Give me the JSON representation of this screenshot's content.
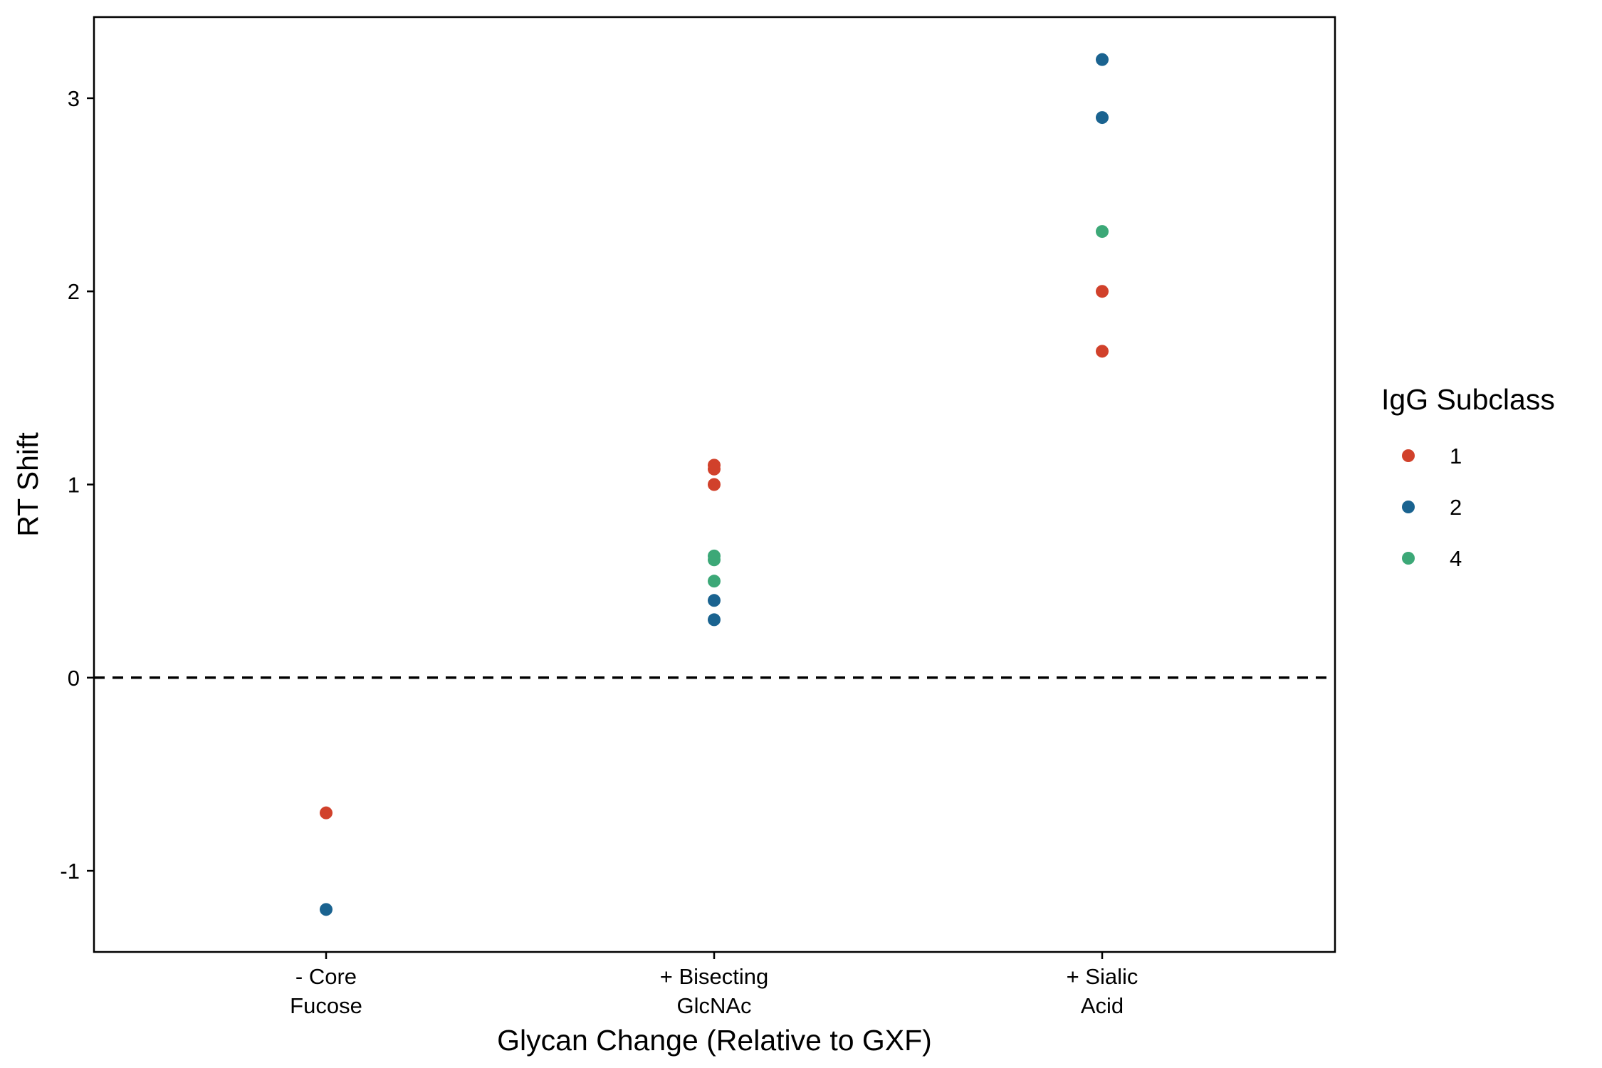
{
  "chart_data": {
    "type": "scatter",
    "title": "",
    "xlabel": "Glycan Change (Relative to GXF)",
    "ylabel": "RT Shift",
    "categories": [
      [
        "- Core",
        "Fucose"
      ],
      [
        "+ Bisecting",
        "GlcNAc"
      ],
      [
        "+ Sialic",
        "Acid"
      ]
    ],
    "ylim": [
      -1.42,
      3.42
    ],
    "yticks": [
      -1,
      0,
      1,
      2,
      3
    ],
    "ytick_labels": [
      "-1",
      "0",
      "1",
      "2",
      "3"
    ],
    "reference_line": {
      "y": 0,
      "style": "dashed"
    },
    "legend": {
      "title": "IgG Subclass",
      "position": "right"
    },
    "series": [
      {
        "name": "1",
        "color": "#d1412b",
        "points": [
          {
            "category": 0,
            "y": -0.7
          },
          {
            "category": 1,
            "y": 1.1
          },
          {
            "category": 1,
            "y": 1.08
          },
          {
            "category": 1,
            "y": 1.0
          },
          {
            "category": 2,
            "y": 2.0
          },
          {
            "category": 2,
            "y": 1.69
          }
        ]
      },
      {
        "name": "2",
        "color": "#1a6390",
        "points": [
          {
            "category": 0,
            "y": -1.2
          },
          {
            "category": 1,
            "y": 0.4
          },
          {
            "category": 1,
            "y": 0.3
          },
          {
            "category": 2,
            "y": 3.2
          },
          {
            "category": 2,
            "y": 2.9
          }
        ]
      },
      {
        "name": "4",
        "color": "#3ca877",
        "points": [
          {
            "category": 1,
            "y": 0.63
          },
          {
            "category": 1,
            "y": 0.61
          },
          {
            "category": 1,
            "y": 0.5
          },
          {
            "category": 2,
            "y": 2.31
          }
        ]
      }
    ]
  }
}
